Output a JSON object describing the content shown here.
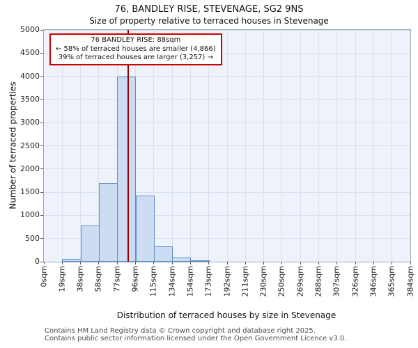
{
  "title": "76, BANDLEY RISE, STEVENAGE, SG2 9NS",
  "subtitle": "Size of property relative to terraced houses in Stevenage",
  "annotation": {
    "line1": "76 BANDLEY RISE: 88sqm",
    "line2": "← 58% of terraced houses are smaller (4,866)",
    "line3": "39% of terraced houses are larger (3,257) →"
  },
  "footer": {
    "line1": "Contains HM Land Registry data © Crown copyright and database right 2025.",
    "line2": "Contains public sector information licensed under the Open Government Licence v3.0."
  },
  "chart_data": {
    "type": "bar",
    "title": "76, BANDLEY RISE, STEVENAGE, SG2 9NS",
    "subtitle": "Size of property relative to terraced houses in Stevenage",
    "xlabel": "Distribution of terraced houses by size in Stevenage",
    "ylabel": "Number of terraced properties",
    "categories": [
      "0sqm",
      "19sqm",
      "38sqm",
      "58sqm",
      "77sqm",
      "96sqm",
      "115sqm",
      "134sqm",
      "154sqm",
      "173sqm",
      "192sqm",
      "211sqm",
      "230sqm",
      "250sqm",
      "269sqm",
      "288sqm",
      "307sqm",
      "326sqm",
      "346sqm",
      "365sqm",
      "384sqm"
    ],
    "values": [
      0,
      60,
      780,
      1700,
      4000,
      1430,
      330,
      90,
      25,
      0,
      0,
      0,
      0,
      0,
      0,
      0,
      0,
      0,
      0,
      0
    ],
    "xlim": [
      0,
      384
    ],
    "ylim": [
      0,
      5000
    ],
    "ytick_step": 500,
    "grid": true,
    "legend": "none",
    "marker": {
      "label": "76 BANDLEY RISE",
      "value_sqm": 88
    },
    "colors": {
      "bar_fill": "#ccdcf2",
      "bar_edge": "#5f8fc4",
      "marker_line": "#990000",
      "annotation_border": "#cc0000",
      "grid": "#d8dfed",
      "plot_bg": "#eef2fa"
    }
  }
}
